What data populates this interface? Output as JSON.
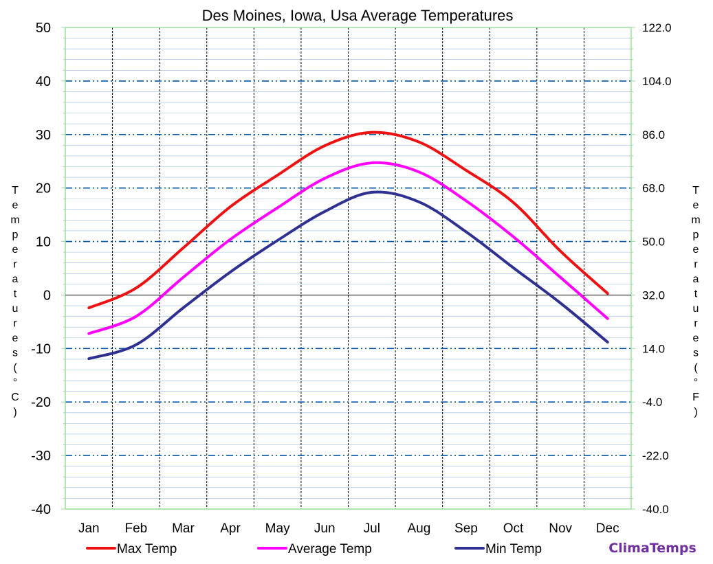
{
  "chart_data": {
    "type": "line",
    "title": "Des Moines, Iowa, Usa Average Temperatures",
    "categories": [
      "Jan",
      "Feb",
      "Mar",
      "Apr",
      "May",
      "Jun",
      "Jul",
      "Aug",
      "Sep",
      "Oct",
      "Nov",
      "Dec"
    ],
    "series": [
      {
        "name": "Max Temp",
        "color": "#ee1111",
        "values": [
          -2.4,
          1.3,
          8.8,
          16.5,
          22.4,
          27.9,
          30.4,
          28.6,
          23.3,
          17.3,
          8.2,
          0.3
        ]
      },
      {
        "name": "Average Temp",
        "color": "#ff00ff",
        "values": [
          -7.2,
          -4.0,
          3.3,
          10.4,
          16.3,
          21.8,
          24.7,
          23.0,
          17.6,
          10.9,
          3.3,
          -4.4
        ]
      },
      {
        "name": "Min Temp",
        "color": "#2e3192",
        "values": [
          -11.9,
          -9.3,
          -2.4,
          4.3,
          10.2,
          15.6,
          19.2,
          17.4,
          11.8,
          5.1,
          -1.5,
          -8.8
        ]
      }
    ],
    "y_left": {
      "label": "Temperatures (°C)",
      "range": [
        -40,
        50
      ],
      "ticks": [
        "50",
        "40",
        "30",
        "20",
        "10",
        "0",
        "-10",
        "-20",
        "-30",
        "-40"
      ]
    },
    "y_right": {
      "label": "Temperatures (°F)",
      "range": [
        -40,
        122
      ],
      "ticks": [
        "122.0",
        "104.0",
        "86.0",
        "68.0",
        "50.0",
        "32.0",
        "14.0",
        "-4.0",
        "-22.0",
        "-40.0"
      ]
    },
    "grid": true,
    "legend_position": "bottom",
    "colors": {
      "axis_green": "#99dd99",
      "major_grid": "#0055aa",
      "minor_grid": "#99bbdd",
      "month_divider": "#000000",
      "brand": "#7030a0"
    }
  },
  "brand": "ClimaTemps"
}
